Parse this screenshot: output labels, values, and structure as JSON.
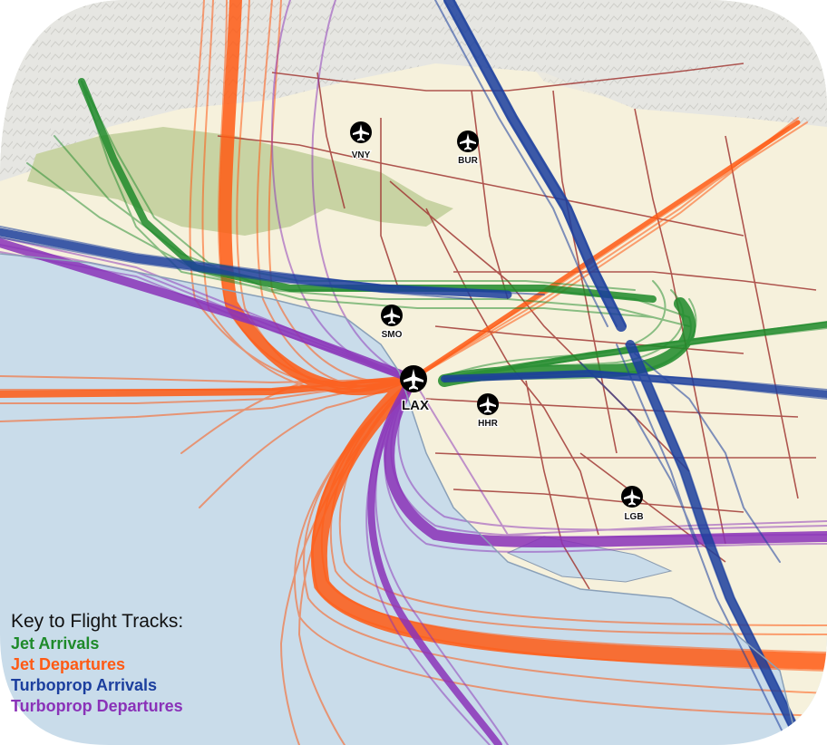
{
  "colors": {
    "ocean": "#c9dcea",
    "land": "#f6f1dc",
    "mountains": "#e4e4e0",
    "park": "#c8d3a3",
    "roads": "#a23a36",
    "jet_arrivals": "#1e8a2a",
    "jet_departures": "#ff5a14",
    "turboprop_arrivals": "#1c3f9e",
    "turboprop_departures": "#8a32b8"
  },
  "airports": [
    {
      "code": "VNY",
      "icon": "airplane-icon"
    },
    {
      "code": "BUR",
      "icon": "airplane-icon"
    },
    {
      "code": "SMO",
      "icon": "airplane-icon"
    },
    {
      "code": "LAX",
      "icon": "airplane-icon"
    },
    {
      "code": "HHR",
      "icon": "airplane-icon"
    },
    {
      "code": "LGB",
      "icon": "airplane-icon"
    }
  ],
  "legend": {
    "title": "Key to Flight Tracks:",
    "items": [
      {
        "label": "Jet Arrivals",
        "color": "#1e8a2a"
      },
      {
        "label": "Jet Departures",
        "color": "#ff5a14"
      },
      {
        "label": "Turboprop Arrivals",
        "color": "#1c3f9e"
      },
      {
        "label": "Turboprop Departures",
        "color": "#8a32b8"
      }
    ]
  }
}
